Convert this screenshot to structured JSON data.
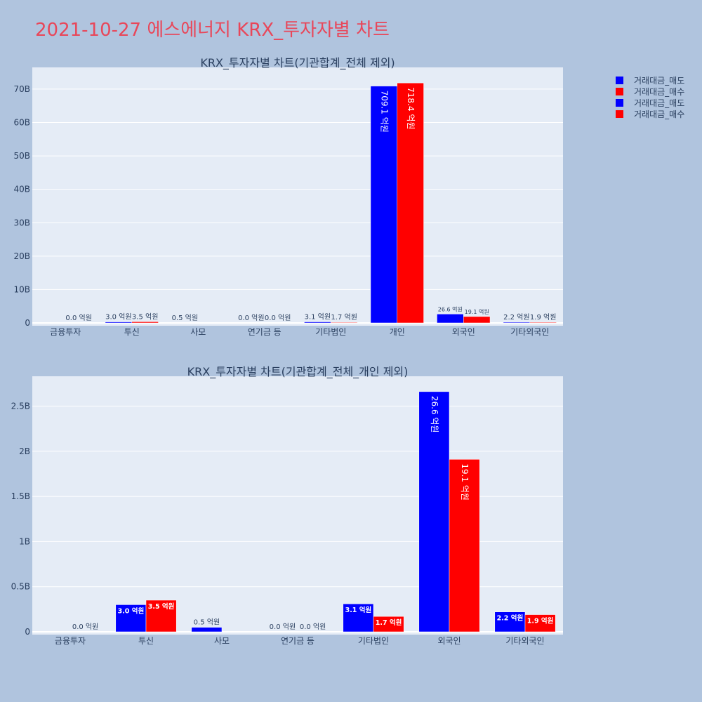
{
  "page_title": "2021-10-27 에스에너지 KRX_투자자별 차트",
  "colors": {
    "sell": "#0000ff",
    "buy": "#ff0000",
    "plot_bg": "#e5ecf6",
    "page_bg": "#b0c4de",
    "title": "#e8475a"
  },
  "legend": {
    "placement": "top-right",
    "items": [
      {
        "label": "거래대금_매도",
        "color": "#0000ff"
      },
      {
        "label": "거래대금_매수",
        "color": "#ff0000"
      },
      {
        "label": "거래대금_매도",
        "color": "#0000ff"
      },
      {
        "label": "거래대금_매수",
        "color": "#ff0000"
      }
    ]
  },
  "chart_data": [
    {
      "type": "bar",
      "title": "KRX_투자자별 차트(기관합계_전체 제외)",
      "categories": [
        "금융투자",
        "투신",
        "사모",
        "연기금 등",
        "기타법인",
        "개인",
        "외국인",
        "기타외국인"
      ],
      "series": [
        {
          "name": "거래대금_매도",
          "values": [
            0,
            0.3,
            0.05,
            0,
            0.31,
            70.91,
            2.66,
            0.22
          ],
          "labels": [
            "",
            "3.0 억원",
            "0.5 억원",
            "0.0 억원",
            "3.1 억원",
            "709.1 억원",
            "26.6 억원",
            "2.2 억원"
          ]
        },
        {
          "name": "거래대금_매수",
          "values": [
            0,
            0.35,
            0,
            0,
            0.17,
            71.84,
            1.91,
            0.19
          ],
          "labels": [
            "0.0 억원",
            "3.5 억원",
            "",
            "0.0 억원",
            "1.7 억원",
            "718.4 억원",
            "19.1 억원",
            "1.9 억원"
          ]
        }
      ],
      "ylim": [
        0,
        76.5
      ],
      "yticks": [
        0,
        10,
        20,
        30,
        40,
        50,
        60,
        70
      ],
      "ytick_labels": [
        "0",
        "10B",
        "20B",
        "30B",
        "40B",
        "50B",
        "60B",
        "70B"
      ],
      "grid": true
    },
    {
      "type": "bar",
      "title": "KRX_투자자별 차트(기관합계_전체_개인 제외)",
      "categories": [
        "금융투자",
        "투신",
        "사모",
        "연기금 등",
        "기타법인",
        "외국인",
        "기타외국인"
      ],
      "series": [
        {
          "name": "거래대금_매도",
          "values": [
            0,
            0.3,
            0.05,
            0,
            0.31,
            2.66,
            0.22
          ],
          "labels": [
            "",
            "3.0 억원",
            "0.5 억원",
            "0.0 억원",
            "3.1 억원",
            "26.6 억원",
            "2.2 억원"
          ]
        },
        {
          "name": "거래대금_매수",
          "values": [
            0,
            0.35,
            0,
            0,
            0.17,
            1.91,
            0.19
          ],
          "labels": [
            "0.0 억원",
            "3.5 억원",
            "",
            "0.0 억원",
            "1.7 억원",
            "19.1 억원",
            "1.9 억원"
          ]
        }
      ],
      "ylim": [
        0,
        2.83
      ],
      "yticks": [
        0,
        0.5,
        1,
        1.5,
        2,
        2.5
      ],
      "ytick_labels": [
        "0",
        "0.5B",
        "1B",
        "1.5B",
        "2B",
        "2.5B"
      ],
      "grid": true
    }
  ]
}
